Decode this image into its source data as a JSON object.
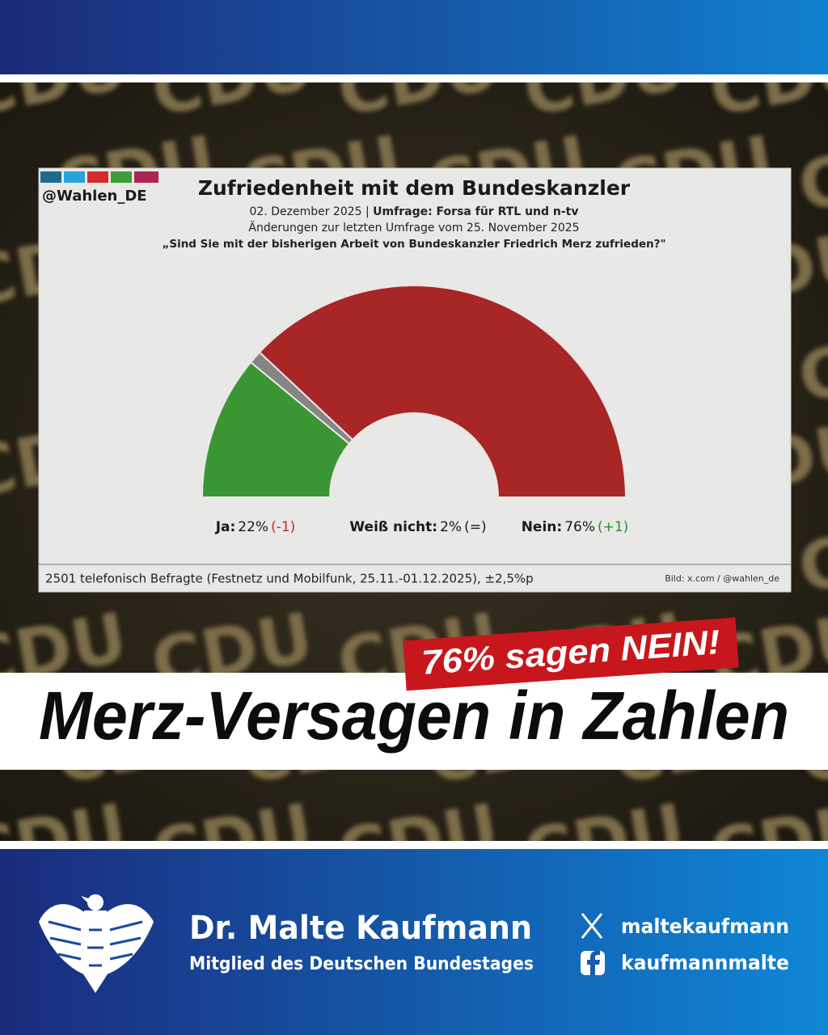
{
  "background_text": "CDU",
  "chart_data": {
    "type": "half-donut",
    "brand": "@Wahlen_DE",
    "title": "Zufriedenheit mit dem Bundeskanzler",
    "date": "02. Dezember 2025 |",
    "source": "Umfrage: Forsa für RTL und n-tv",
    "subtitle": "Änderungen zur letzten Umfrage vom 25. November 2025",
    "question": "„Sind Sie mit der bisherigen Arbeit von Bundeskanzler Friedrich Merz zufrieden?\"",
    "categories": [
      "Ja:",
      "Weiß nicht:",
      "Nein:"
    ],
    "values": [
      22,
      2,
      76
    ],
    "value_labels": [
      "22%",
      "2%",
      "76%"
    ],
    "changes": [
      -1,
      0,
      1
    ],
    "change_labels": [
      "(-1)",
      "(=)",
      "(+1)"
    ],
    "colors": [
      "#3a9633",
      "#858585",
      "#a82626"
    ],
    "note": "2501 telefonisch Befragte (Festnetz und Mobilfunk, 25.11.-01.12.2025), ±2,5%p",
    "credit": "Bild: x.com / @wahlen_de"
  },
  "banner": "76% sagen NEIN!",
  "headline": "Merz-Versagen in Zahlen",
  "footer": {
    "name": "Dr. Malte Kaufmann",
    "role": "Mitglied des Deutschen Bundestages",
    "socials": [
      {
        "handle": "maltekaufmann"
      },
      {
        "handle": "kaufmannmalte"
      }
    ]
  }
}
